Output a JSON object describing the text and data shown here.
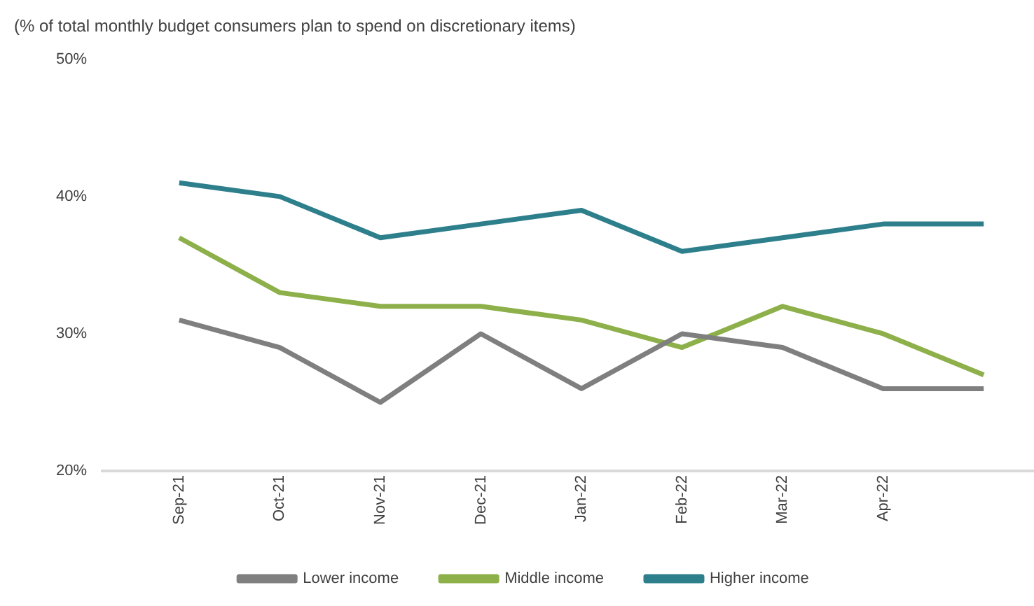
{
  "chart_data": {
    "type": "line",
    "title": "(% of total monthly budget consumers plan to spend on discretionary items)",
    "categories": [
      "Sep-21",
      "Oct-21",
      "Nov-21",
      "Dec-21",
      "Jan-22",
      "Feb-22",
      "Mar-22",
      "Apr-22",
      null
    ],
    "series": [
      {
        "name": "Lower income",
        "color": "#7f7f7f",
        "values": [
          31,
          29,
          25,
          30,
          26,
          30,
          29,
          26,
          26
        ]
      },
      {
        "name": "Middle income",
        "color": "#8db04a",
        "values": [
          37,
          33,
          32,
          32,
          31,
          29,
          32,
          30,
          27
        ]
      },
      {
        "name": "Higher income",
        "color": "#2e7f8c",
        "values": [
          41,
          40,
          37,
          38,
          39,
          36,
          37,
          38,
          38
        ]
      }
    ],
    "ylim": [
      20,
      50
    ],
    "yticks": [
      {
        "value": 20,
        "label": "20%"
      },
      {
        "value": 30,
        "label": "30%"
      },
      {
        "value": 40,
        "label": "40%"
      },
      {
        "value": 50,
        "label": "50%"
      }
    ],
    "grid": false,
    "legend": "bottom",
    "marker": "none",
    "line_style": "solid"
  }
}
